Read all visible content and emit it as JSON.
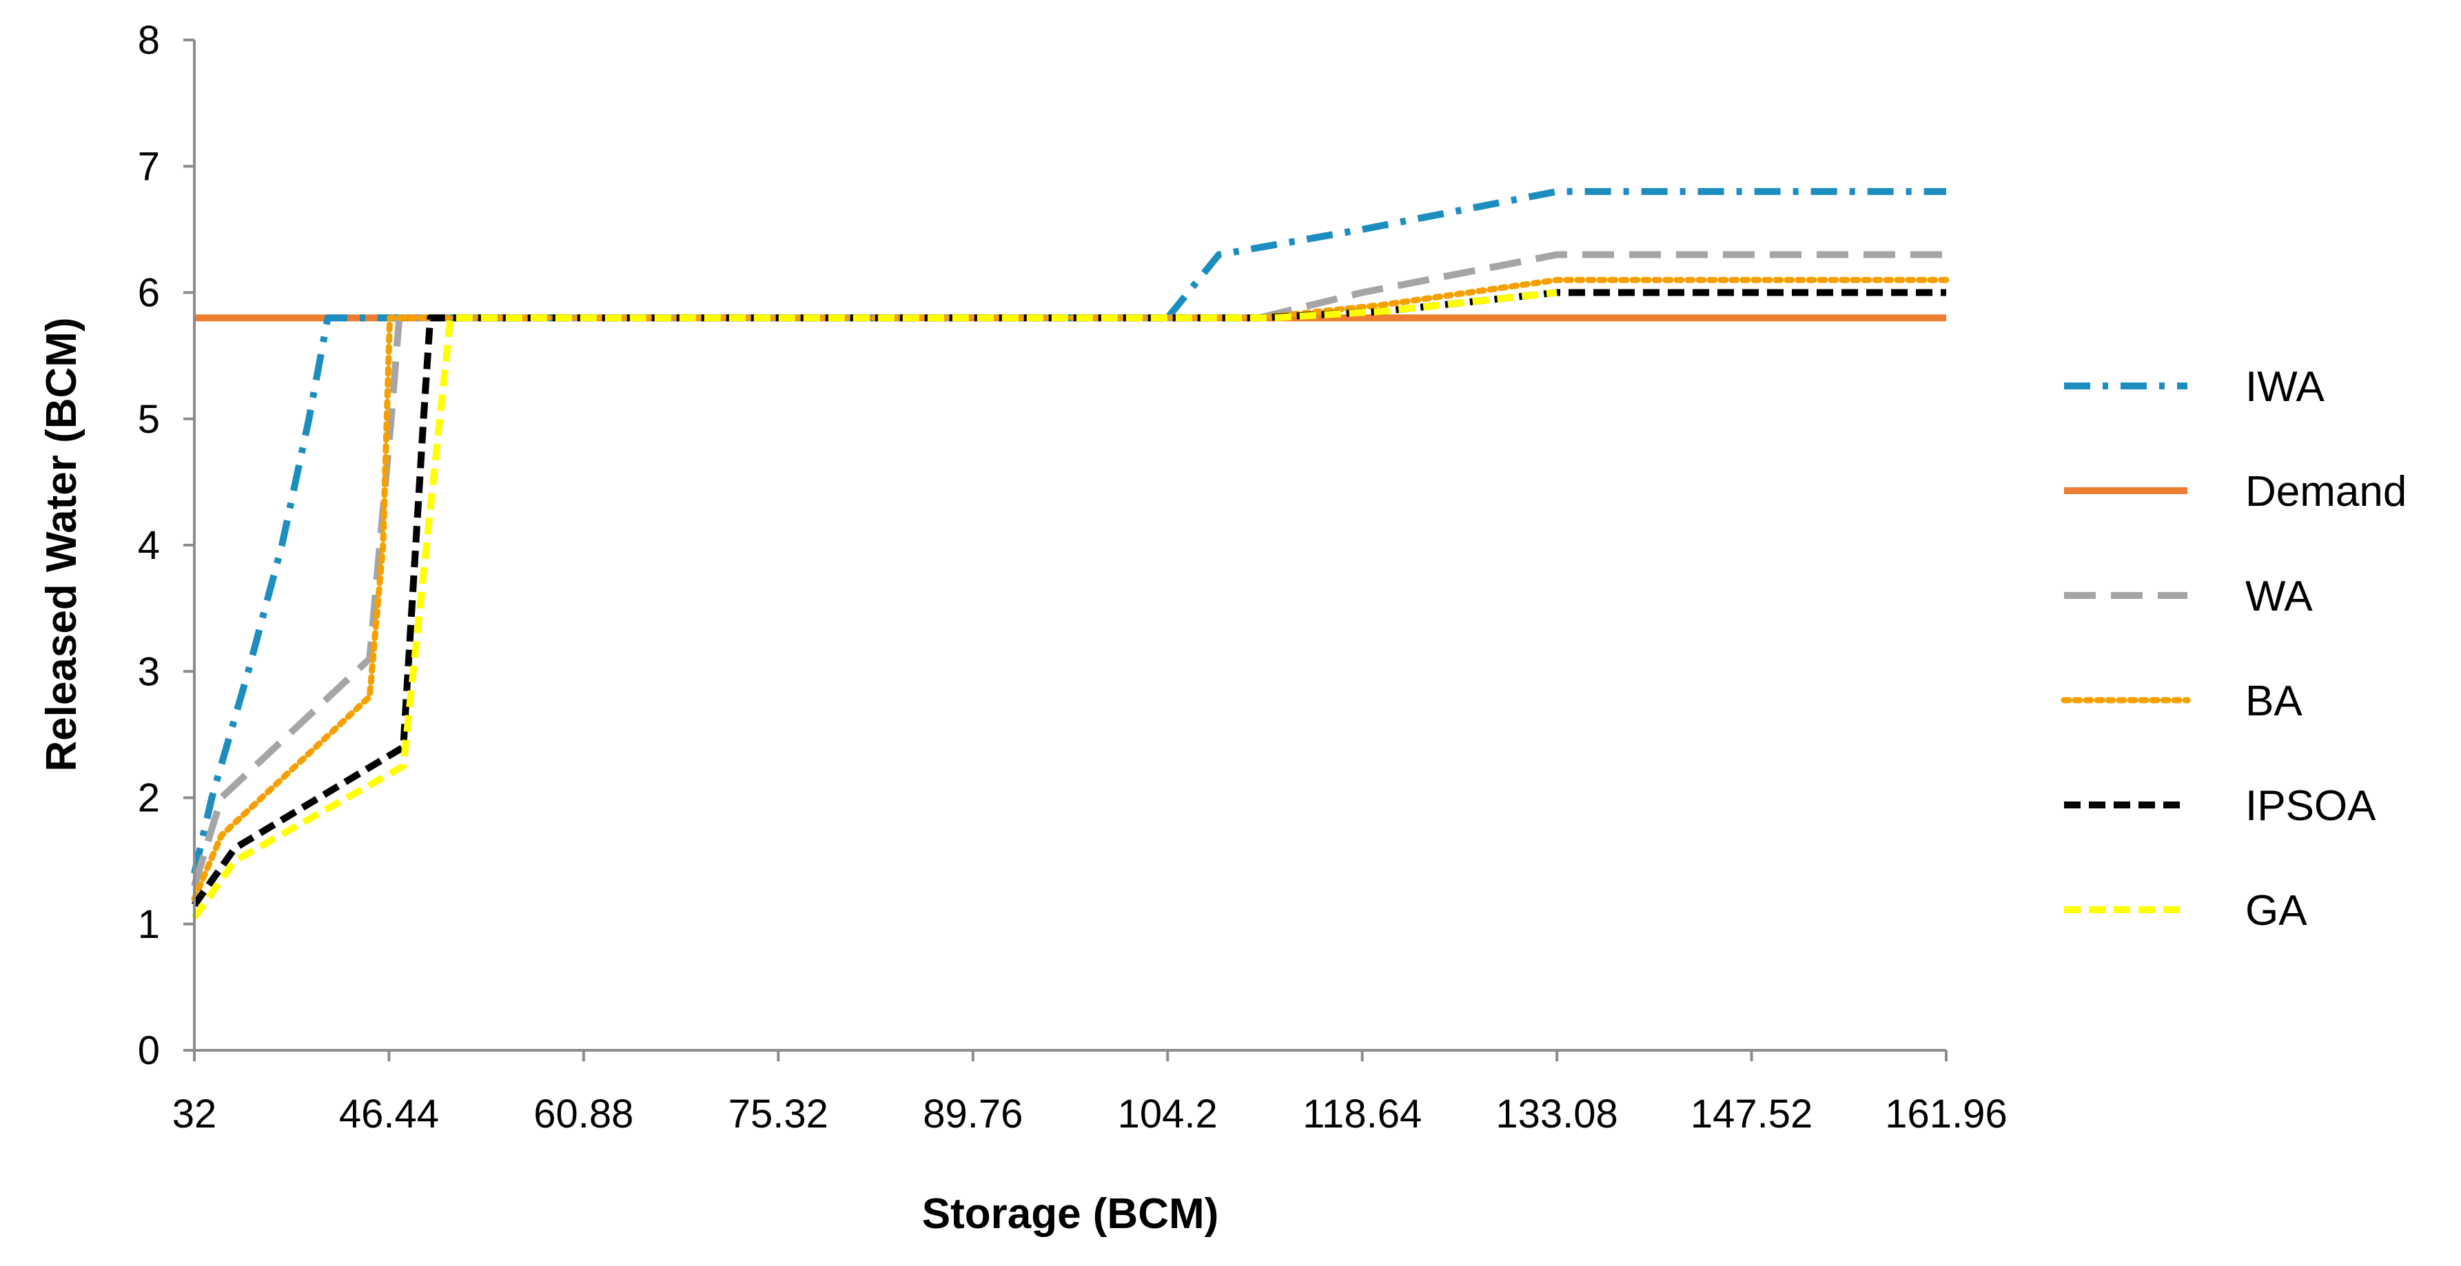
{
  "chart_data": {
    "type": "line",
    "title": "",
    "xlabel": "Storage (BCM)",
    "ylabel": "Released Water (BCM)",
    "x_ticks": [
      "32",
      "46.44",
      "60.88",
      "75.32",
      "89.76",
      "104.2",
      "118.64",
      "133.08",
      "147.52",
      "161.96"
    ],
    "xlim": [
      32,
      161.96
    ],
    "ylim": [
      0,
      8
    ],
    "y_ticks": [
      "0",
      "1",
      "2",
      "3",
      "4",
      "5",
      "6",
      "7",
      "8"
    ],
    "grid": false,
    "legend_position": "right",
    "series": [
      {
        "name": "IWA",
        "color": "#1B8DBF",
        "dash": "dash-dot",
        "points": [
          [
            32,
            1.4
          ],
          [
            33.3,
            2.0
          ],
          [
            36,
            3.0
          ],
          [
            38.5,
            4.0
          ],
          [
            40.5,
            5.0
          ],
          [
            41.9,
            5.8
          ],
          [
            104.2,
            5.8
          ],
          [
            108,
            6.3
          ],
          [
            118.64,
            6.5
          ],
          [
            133.08,
            6.8
          ],
          [
            161.96,
            6.8
          ]
        ]
      },
      {
        "name": "Demand",
        "color": "#ED7D31",
        "dash": "solid",
        "points": [
          [
            32,
            5.8
          ],
          [
            161.96,
            5.8
          ]
        ]
      },
      {
        "name": "WA",
        "color": "#A5A5A5",
        "dash": "long-dash",
        "points": [
          [
            32,
            1.3
          ],
          [
            34,
            2.0
          ],
          [
            45,
            3.1
          ],
          [
            46.6,
            5.0
          ],
          [
            47.2,
            5.8
          ],
          [
            111,
            5.8
          ],
          [
            118.64,
            6.0
          ],
          [
            133.08,
            6.3
          ],
          [
            161.96,
            6.3
          ]
        ]
      },
      {
        "name": "BA",
        "color": "#F5A000",
        "dash": "dot",
        "points": [
          [
            32,
            1.2
          ],
          [
            34,
            1.7
          ],
          [
            45,
            2.8
          ],
          [
            46,
            4.0
          ],
          [
            46.5,
            5.8
          ],
          [
            111,
            5.8
          ],
          [
            120,
            5.9
          ],
          [
            133.08,
            6.1
          ],
          [
            161.96,
            6.1
          ]
        ]
      },
      {
        "name": "IPSOA",
        "color": "#000000",
        "dash": "dash",
        "points": [
          [
            32,
            1.15
          ],
          [
            35,
            1.6
          ],
          [
            47.5,
            2.4
          ],
          [
            49,
            5.0
          ],
          [
            49.5,
            5.8
          ],
          [
            111,
            5.8
          ],
          [
            120,
            5.85
          ],
          [
            133.08,
            6.0
          ],
          [
            161.96,
            6.0
          ]
        ]
      },
      {
        "name": "GA",
        "color": "#FFFF00",
        "dash": "dash",
        "points": [
          [
            32,
            1.05
          ],
          [
            35,
            1.5
          ],
          [
            47.5,
            2.25
          ],
          [
            51,
            5.8
          ],
          [
            112,
            5.8
          ],
          [
            120,
            5.85
          ],
          [
            133.08,
            6.0
          ]
        ]
      }
    ]
  }
}
